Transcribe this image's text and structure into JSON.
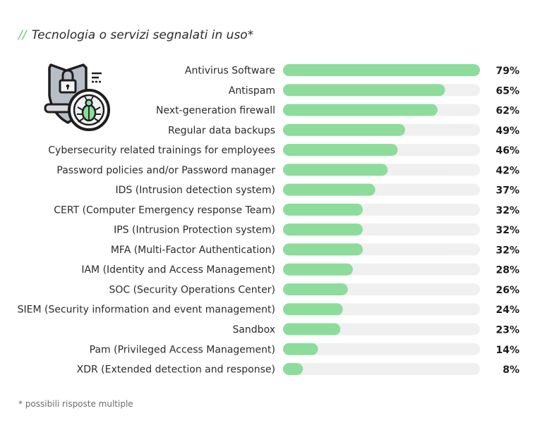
{
  "title": {
    "slashes": "//",
    "text": "Tecnologia o servizi segnalati in uso*"
  },
  "footnote": "* possibili risposte multiple",
  "icon": "shield-lock-bug-magnifier-icon",
  "colors": {
    "bar": "#8ddc9b",
    "track": "#f0f0f0",
    "accent": "#6ec27a"
  },
  "chart_data": {
    "type": "bar",
    "orientation": "horizontal",
    "title": "Tecnologia o servizi segnalati in uso*",
    "xlim": [
      0,
      79
    ],
    "grid": false,
    "categories": [
      "Antivirus Software",
      "Antispam",
      "Next-generation firewall",
      "Regular data backups",
      "Cybersecurity related trainings for employees",
      "Password policies and/or Password manager",
      "IDS (Intrusion detection system)",
      "CERT (Computer Emergency response Team)",
      "IPS (Intrusion Protection system)",
      "MFA (Multi-Factor Authentication)",
      "IAM (Identity and Access Management)",
      "SOC (Security Operations Center)",
      "SIEM (Security information and event management)",
      "Sandbox",
      "Pam (Privileged Access Management)",
      "XDR (Extended detection and response)"
    ],
    "values": [
      79,
      65,
      62,
      49,
      46,
      42,
      37,
      32,
      32,
      32,
      28,
      26,
      24,
      23,
      14,
      8
    ],
    "value_labels": [
      "79%",
      "65%",
      "62%",
      "49%",
      "46%",
      "42%",
      "37%",
      "32%",
      "32%",
      "32%",
      "28%",
      "26%",
      "24%",
      "23%",
      "14%",
      "8%"
    ]
  }
}
